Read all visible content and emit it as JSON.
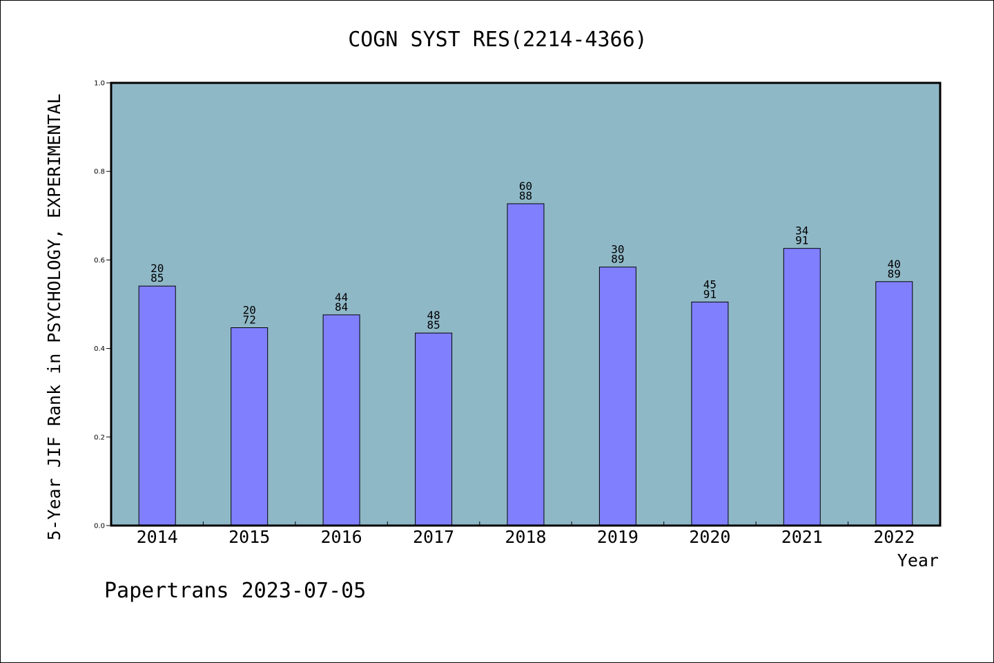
{
  "chart_data": {
    "type": "bar",
    "title": "COGN SYST RES(2214-4366)",
    "xlabel": "Year",
    "ylabel": "5-Year JIF Rank in PSYCHOLOGY, EXPERIMENTAL",
    "categories": [
      "2014",
      "2015",
      "2016",
      "2017",
      "2018",
      "2019",
      "2020",
      "2021",
      "2022"
    ],
    "values": [
      0.541,
      0.447,
      0.476,
      0.435,
      0.727,
      0.584,
      0.505,
      0.626,
      0.551
    ],
    "data_labels": [
      {
        "top": "20",
        "bottom": "85"
      },
      {
        "top": "20",
        "bottom": "72"
      },
      {
        "top": "44",
        "bottom": "84"
      },
      {
        "top": "48",
        "bottom": "85"
      },
      {
        "top": "60",
        "bottom": "88"
      },
      {
        "top": "30",
        "bottom": "89"
      },
      {
        "top": "45",
        "bottom": "91"
      },
      {
        "top": "34",
        "bottom": "91"
      },
      {
        "top": "40",
        "bottom": "89"
      }
    ],
    "ylim": [
      0,
      1.0
    ],
    "yticks": [
      "0.0",
      "0.2",
      "0.4",
      "0.6",
      "0.8",
      "1.0"
    ],
    "grid": false,
    "colors": {
      "plot_background": "#8fb8c7",
      "bar_fill": "#8080ff",
      "bar_stroke": "#000000"
    }
  },
  "footer": {
    "text": "Papertrans 2023-07-05"
  }
}
